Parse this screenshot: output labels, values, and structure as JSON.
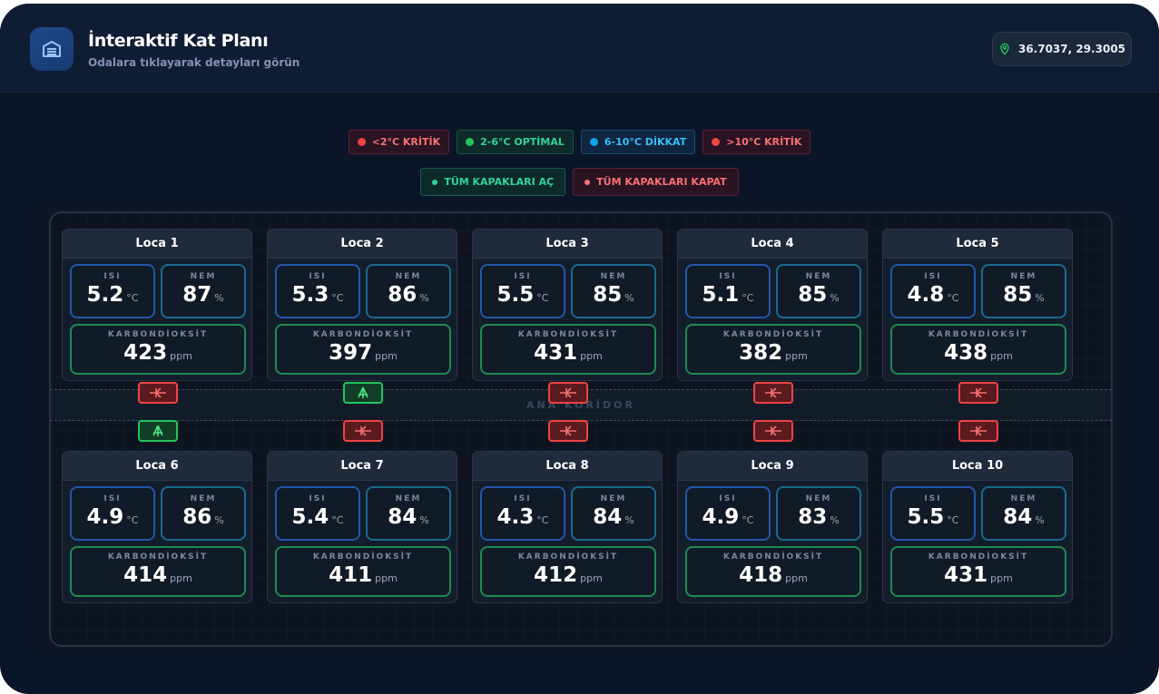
{
  "header": {
    "title": "İnteraktif Kat Planı",
    "subtitle": "Odalara tıklayarak detayları görün",
    "coordinates": "36.7037, 29.3005"
  },
  "legend": [
    {
      "label": "<2°C KRİTİK",
      "color": "#ef4444"
    },
    {
      "label": "2-6°C OPTİMAL",
      "color": "#22c55e"
    },
    {
      "label": "6-10°C DİKKAT",
      "color": "#0ea5e9"
    },
    {
      "label": ">10°C KRİTİK",
      "color": "#ef4444"
    }
  ],
  "actions": {
    "open_all": "TÜM KAPAKLARI AÇ",
    "close_all": "TÜM KAPAKLARI KAPAT"
  },
  "corridor_label": "ANA KORİDOR",
  "metric_labels": {
    "temp": "ISI",
    "humidity": "NEM",
    "co2": "KARBONDİOKSİT"
  },
  "units": {
    "temp": "°C",
    "humidity": "%",
    "co2": "ppm"
  },
  "rooms": [
    {
      "name": "Loca 1",
      "temp": "5.2",
      "humidity": "87",
      "co2": "423",
      "door": "closed"
    },
    {
      "name": "Loca 2",
      "temp": "5.3",
      "humidity": "86",
      "co2": "397",
      "door": "open"
    },
    {
      "name": "Loca 3",
      "temp": "5.5",
      "humidity": "85",
      "co2": "431",
      "door": "closed"
    },
    {
      "name": "Loca 4",
      "temp": "5.1",
      "humidity": "85",
      "co2": "382",
      "door": "closed"
    },
    {
      "name": "Loca 5",
      "temp": "4.8",
      "humidity": "85",
      "co2": "438",
      "door": "closed"
    },
    {
      "name": "Loca 6",
      "temp": "4.9",
      "humidity": "86",
      "co2": "414",
      "door": "open"
    },
    {
      "name": "Loca 7",
      "temp": "5.4",
      "humidity": "84",
      "co2": "411",
      "door": "closed"
    },
    {
      "name": "Loca 8",
      "temp": "4.3",
      "humidity": "84",
      "co2": "412",
      "door": "closed"
    },
    {
      "name": "Loca 9",
      "temp": "4.9",
      "humidity": "83",
      "co2": "418",
      "door": "closed"
    },
    {
      "name": "Loca 10",
      "temp": "5.5",
      "humidity": "84",
      "co2": "431",
      "door": "closed"
    }
  ]
}
